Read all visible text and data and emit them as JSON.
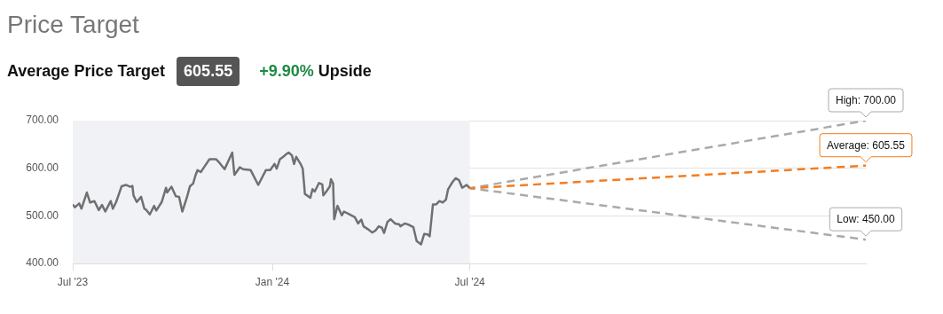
{
  "chart_data": {
    "type": "line",
    "title": "Price Target",
    "subtitle": "Average Price Target",
    "annotations": [
      "605.55",
      "+9.90%",
      "Upside"
    ],
    "xlim": [
      "2023-07-01",
      "2025-07-01"
    ],
    "xticks": [
      {
        "value": "2023-07-01",
        "label": "Jul '23"
      },
      {
        "value": "2024-01-01",
        "label": "Jan '24"
      },
      {
        "value": "2024-07-01",
        "label": "Jul '24"
      }
    ],
    "ylim": [
      400,
      700
    ],
    "yticks": [
      {
        "value": 400,
        "label": "400.00"
      },
      {
        "value": 500,
        "label": "500.00"
      },
      {
        "value": 600,
        "label": "600.00"
      },
      {
        "value": 700,
        "label": "700.00"
      }
    ],
    "grid": "y",
    "legend": false,
    "marker": "none",
    "bands": [
      {
        "axis": "x",
        "from": "2023-07-01",
        "to": "2024-07-01",
        "color": "#f1f2f6"
      }
    ],
    "series": [
      {
        "color": "#707070",
        "line_style": "solid",
        "x": [
          "2023-07-01",
          "2023-07-03",
          "2023-07-07",
          "2023-07-09",
          "2023-07-14",
          "2023-07-17",
          "2023-07-21",
          "2023-07-25",
          "2023-07-28",
          "2023-07-31",
          "2023-08-05",
          "2023-08-07",
          "2023-08-10",
          "2023-08-15",
          "2023-08-19",
          "2023-08-23",
          "2023-08-25",
          "2023-08-26",
          "2023-08-29",
          "2023-09-02",
          "2023-09-05",
          "2023-09-07",
          "2023-09-10",
          "2023-09-14",
          "2023-09-16",
          "2023-09-21",
          "2023-09-25",
          "2023-09-26",
          "2023-09-30",
          "2023-10-04",
          "2023-10-07",
          "2023-10-10",
          "2023-10-14",
          "2023-10-17",
          "2023-10-20",
          "2023-10-22",
          "2023-10-24",
          "2023-10-27",
          "2023-10-30",
          "2023-11-04",
          "2023-11-10",
          "2023-11-13",
          "2023-11-18",
          "2023-11-25",
          "2023-11-27",
          "2023-12-02",
          "2023-12-05",
          "2023-12-12",
          "2023-12-19",
          "2023-12-26",
          "2023-12-30",
          "2024-01-03",
          "2024-01-05",
          "2024-01-08",
          "2024-01-11",
          "2024-01-14",
          "2024-01-16",
          "2024-01-19",
          "2024-01-21",
          "2024-01-23",
          "2024-01-27",
          "2024-01-29",
          "2024-01-31",
          "2024-02-05",
          "2024-02-07",
          "2024-02-09",
          "2024-02-13",
          "2024-02-16",
          "2024-02-17",
          "2024-02-20",
          "2024-02-23",
          "2024-02-24",
          "2024-02-26",
          "2024-02-27",
          "2024-03-01",
          "2024-03-05",
          "2024-03-07",
          "2024-03-12",
          "2024-03-17",
          "2024-03-20",
          "2024-03-23",
          "2024-03-25",
          "2024-03-29",
          "2024-04-02",
          "2024-04-05",
          "2024-04-08",
          "2024-04-11",
          "2024-04-13",
          "2024-04-16",
          "2024-04-19",
          "2024-04-23",
          "2024-04-27",
          "2024-04-28",
          "2024-05-02",
          "2024-05-06",
          "2024-05-10",
          "2024-05-13",
          "2024-05-17",
          "2024-05-20",
          "2024-05-23",
          "2024-05-25",
          "2024-05-28",
          "2024-05-31",
          "2024-06-03",
          "2024-06-06",
          "2024-06-09",
          "2024-06-11",
          "2024-06-15",
          "2024-06-18",
          "2024-06-21",
          "2024-06-24",
          "2024-06-28",
          "2024-07-01"
        ],
        "values": [
          524,
          518,
          526,
          515,
          549,
          528,
          531,
          512,
          523,
          509,
          531,
          515,
          529,
          562,
          565,
          561,
          563,
          543,
          529,
          540,
          515,
          512,
          503,
          521,
          511,
          529,
          559,
          549,
          561,
          541,
          540,
          509,
          537,
          562,
          568,
          584,
          596,
          592,
          602,
          619,
          619,
          612,
          598,
          633,
          586,
          602,
          598,
          596,
          565,
          596,
          596,
          609,
          599,
          619,
          624,
          630,
          633,
          627,
          609,
          624,
          609,
          599,
          546,
          538,
          556,
          551,
          569,
          566,
          543,
          552,
          562,
          577,
          568,
          493,
          521,
          501,
          509,
          503,
          497,
          484,
          492,
          478,
          472,
          465,
          469,
          478,
          475,
          464,
          487,
          493,
          484,
          482,
          478,
          484,
          481,
          476,
          447,
          440,
          462,
          461,
          457,
          524,
          524,
          531,
          528,
          534,
          556,
          571,
          579,
          575,
          559,
          565,
          558
        ]
      },
      {
        "color": "#aaaaaa",
        "line_style": "dashed",
        "x": [
          "2024-07-01",
          "2025-07-01"
        ],
        "values": [
          558,
          700
        ],
        "value_labels": [
          null,
          "High: 700.00"
        ]
      },
      {
        "color": "#f57c1f",
        "line_style": "dashed",
        "x": [
          "2024-07-01",
          "2025-07-01"
        ],
        "values": [
          558,
          605.55
        ],
        "value_labels": [
          null,
          "Average: 605.55"
        ]
      },
      {
        "color": "#aaaaaa",
        "line_style": "dashed",
        "x": [
          "2024-07-01",
          "2025-07-01"
        ],
        "values": [
          558,
          450
        ],
        "value_labels": [
          null,
          "Low: 450.00"
        ]
      }
    ]
  }
}
